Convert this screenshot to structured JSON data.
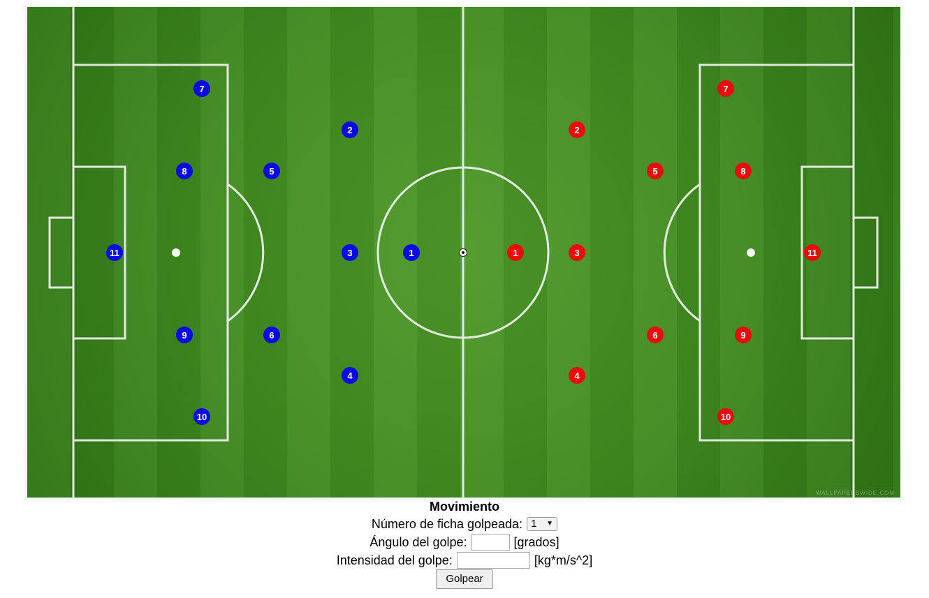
{
  "field": {
    "watermark": "WALLPAPERSWIDE.COM",
    "colors": {
      "blue_team": "#0a0ae6",
      "red_team": "#ee0a0a",
      "grass": "#3f8a1f"
    },
    "blue_players": [
      "1",
      "2",
      "3",
      "4",
      "5",
      "6",
      "7",
      "8",
      "9",
      "10",
      "11"
    ],
    "red_players": [
      "1",
      "2",
      "3",
      "4",
      "5",
      "6",
      "7",
      "8",
      "9",
      "10",
      "11"
    ],
    "ball_icon": "soccer-ball-icon"
  },
  "form": {
    "title": "Movimiento",
    "piece_label": "Número de ficha golpeada:",
    "piece_value": "1",
    "angle_label": "Ángulo del golpe:",
    "angle_value": "",
    "angle_unit": "[grados]",
    "intensity_label": "Intensidad del golpe:",
    "intensity_value": "",
    "intensity_unit": "[kg*m/s^2]",
    "hit_button": "Golpear"
  }
}
